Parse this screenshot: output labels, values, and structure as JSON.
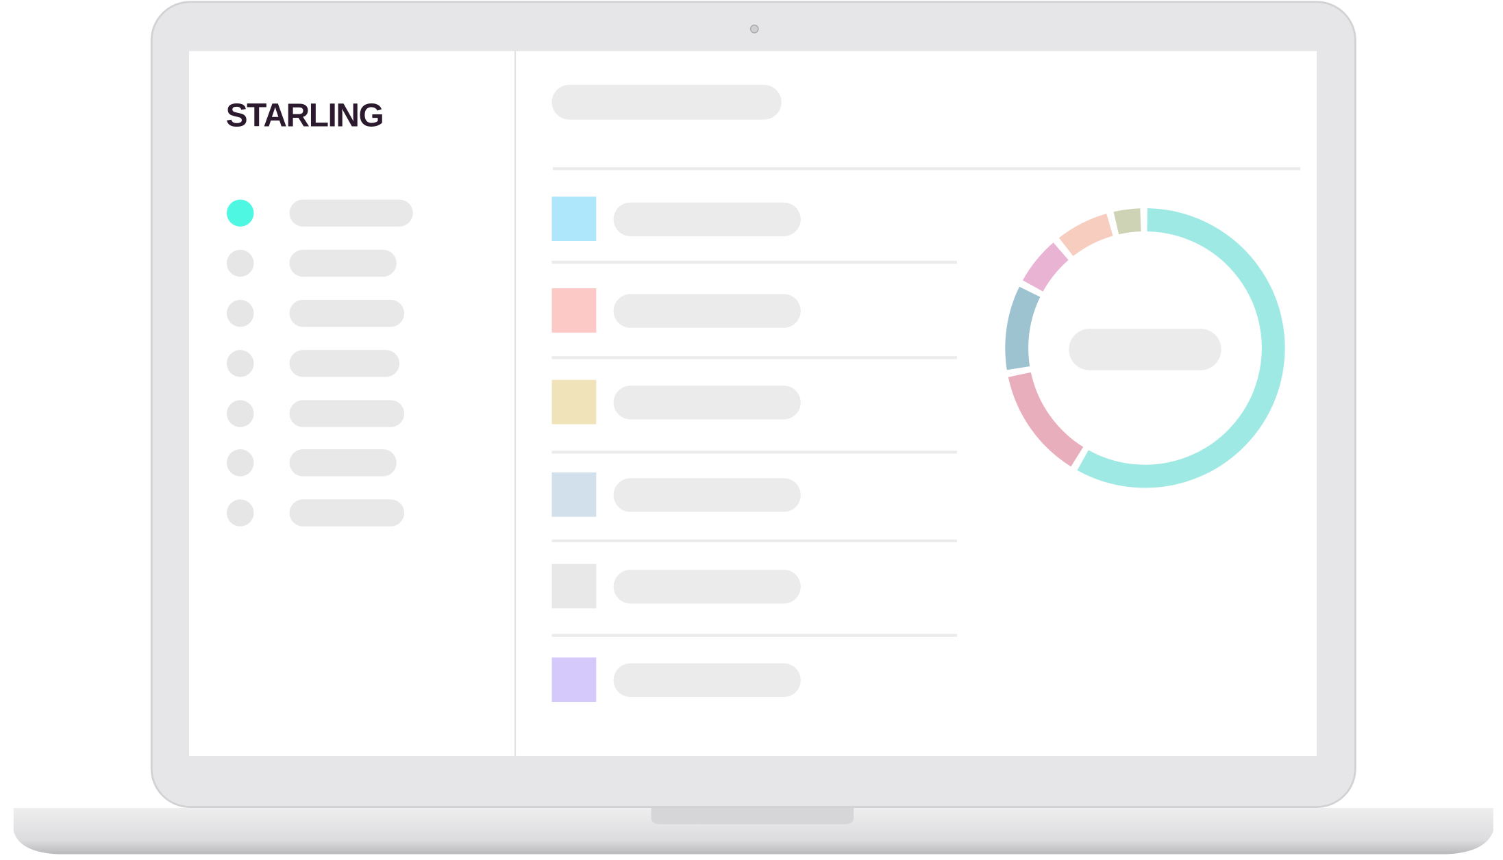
{
  "brand": "STARLING"
}
